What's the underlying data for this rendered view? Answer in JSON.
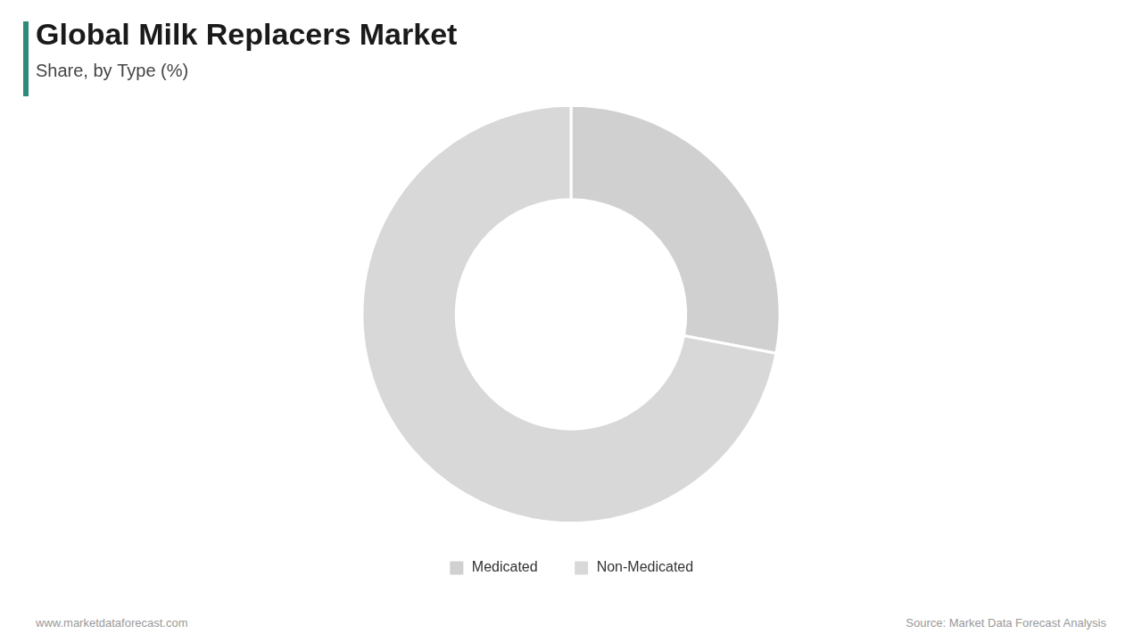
{
  "chart_data": {
    "type": "donut",
    "title": "Global Milk Replacers Market",
    "subtitle": "Share, by Type (%)",
    "categories": [
      "Medicated",
      "Non-Medicated"
    ],
    "values": [
      28,
      72
    ],
    "colors": [
      "#d0d0d0",
      "#d8d8d8"
    ],
    "legend": "bottom",
    "annotations": [
      "www.marketdataforecast.com",
      "Source: Market Data Forecast Analysis"
    ]
  }
}
